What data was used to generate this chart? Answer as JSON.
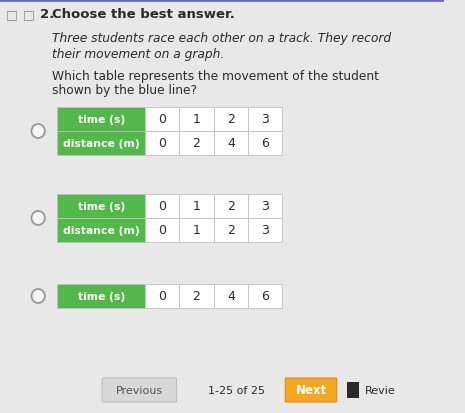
{
  "background_color": "#e8e8e8",
  "page_bg": "#f5f5f5",
  "title_number": "2.",
  "title_text": "Choose the best answer.",
  "body_line1": "Three students race each other on a track. They record",
  "body_line2": "their movement on a graph.",
  "question_line1": "Which table represents the movement of the student",
  "question_line2": "shown by the blue line?",
  "green_color": "#52b84a",
  "table_border_color": "#c0c0c0",
  "cell_bg": "#ffffff",
  "options": [
    {
      "rows": [
        {
          "label": "time (s)",
          "values": [
            "0",
            "1",
            "2",
            "3"
          ]
        },
        {
          "label": "distance (m)",
          "values": [
            "0",
            "2",
            "4",
            "6"
          ]
        }
      ]
    },
    {
      "rows": [
        {
          "label": "time (s)",
          "values": [
            "0",
            "1",
            "2",
            "3"
          ]
        },
        {
          "label": "distance (m)",
          "values": [
            "0",
            "1",
            "2",
            "3"
          ]
        }
      ]
    },
    {
      "rows": [
        {
          "label": "time (s)",
          "values": [
            "0",
            "2",
            "4",
            "6"
          ]
        }
      ]
    }
  ],
  "footer_previous": "Previous",
  "footer_counter": "1-25 of 25",
  "footer_next": "Next",
  "footer_next_color": "#f5a623",
  "footer_review": "Revie",
  "text_color": "#2a2a2a",
  "gray_text": "#666666",
  "radio_edge": "#999999"
}
